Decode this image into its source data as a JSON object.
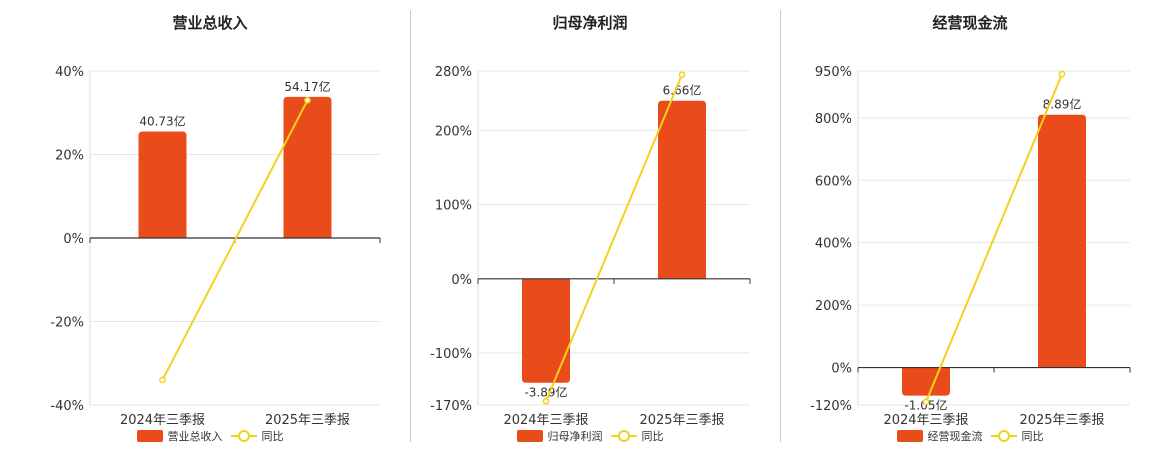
{
  "colors": {
    "bar": "#e94b1b",
    "line": "#f2d21b",
    "axis": "#333333",
    "grid": "#e6e6e6"
  },
  "chart_data": [
    {
      "type": "bar",
      "title": "营业总收入",
      "categories": [
        "2024年三季报",
        "2025年三季报"
      ],
      "bar_series": {
        "name": "营业总收入",
        "yoy_percent": [
          25.5,
          33.8
        ],
        "labels": [
          "40.73亿",
          "54.17亿"
        ]
      },
      "line_series": {
        "name": "同比",
        "values": [
          -34.0,
          33.0
        ]
      },
      "ylim": [
        -40,
        40
      ],
      "yticks": [
        40,
        20,
        0,
        -20,
        -40
      ],
      "ytick_labels": [
        "40%",
        "20%",
        "0%",
        "-20%",
        "-40%"
      ],
      "grid": true,
      "legend": "bottom"
    },
    {
      "type": "bar",
      "title": "归母净利润",
      "categories": [
        "2024年三季报",
        "2025年三季报"
      ],
      "bar_series": {
        "name": "归母净利润",
        "yoy_percent": [
          -140,
          240
        ],
        "labels": [
          "-3.89亿",
          "6.66亿"
        ]
      },
      "line_series": {
        "name": "同比",
        "values": [
          -165,
          275
        ]
      },
      "ylim": [
        -170,
        280
      ],
      "yticks": [
        280,
        200,
        100,
        0,
        -100,
        -170
      ],
      "ytick_labels": [
        "280%",
        "200%",
        "100%",
        "0%",
        "-100%",
        "-170%"
      ],
      "grid": true,
      "legend": "bottom"
    },
    {
      "type": "bar",
      "title": "经营现金流",
      "categories": [
        "2024年三季报",
        "2025年三季报"
      ],
      "bar_series": {
        "name": "经营现金流",
        "yoy_percent": [
          -90,
          810
        ],
        "labels": [
          "-1.05亿",
          "8.89亿"
        ]
      },
      "line_series": {
        "name": "同比",
        "values": [
          -110,
          940
        ]
      },
      "ylim": [
        -120,
        950
      ],
      "yticks": [
        950,
        800,
        600,
        400,
        200,
        0,
        -120
      ],
      "ytick_labels": [
        "950%",
        "800%",
        "600%",
        "400%",
        "200%",
        "0%",
        "-120%"
      ],
      "grid": true,
      "legend": "bottom"
    }
  ]
}
